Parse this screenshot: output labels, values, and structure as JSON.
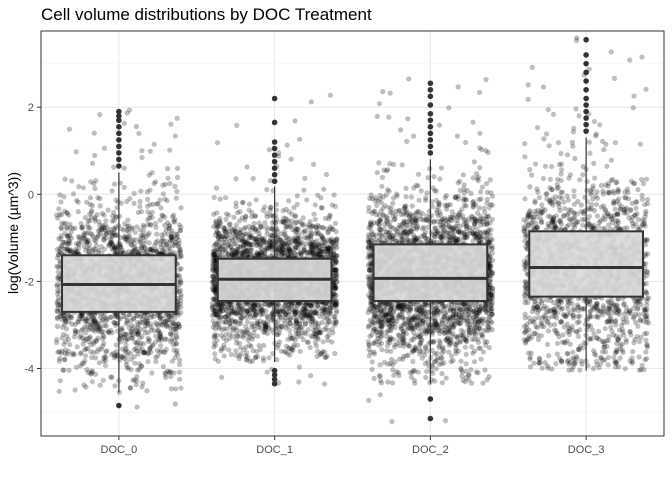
{
  "chart_data": {
    "type": "boxplot",
    "title": "Cell volume distributions by DOC Treatment",
    "xlabel": "",
    "ylabel": "log(Volume (µm^3))",
    "categories": [
      "DOC_0",
      "DOC_1",
      "DOC_2",
      "DOC_3"
    ],
    "yticks": [
      -4,
      -2,
      0,
      2
    ],
    "ylim": [
      -5.55,
      3.75
    ],
    "grid": true,
    "boxes": [
      {
        "category": "DOC_0",
        "q1": -2.7,
        "median": -2.07,
        "q3": -1.4,
        "whisker_low": -4.55,
        "whisker_high": 0.5,
        "outliers": [
          -4.85,
          0.65,
          0.8,
          0.95,
          1.1,
          1.25,
          1.4,
          1.55,
          1.7,
          1.8,
          1.9
        ]
      },
      {
        "category": "DOC_1",
        "q1": -2.45,
        "median": -1.95,
        "q3": -1.48,
        "whisker_low": -3.85,
        "whisker_high": 0.18,
        "outliers": [
          -4.05,
          -4.15,
          -4.25,
          -4.35,
          0.3,
          0.45,
          0.6,
          0.75,
          0.9,
          1.05,
          1.2,
          1.65,
          2.2
        ]
      },
      {
        "category": "DOC_2",
        "q1": -2.45,
        "median": -1.93,
        "q3": -1.15,
        "whisker_low": -4.35,
        "whisker_high": 0.8,
        "outliers": [
          -4.7,
          -5.15,
          0.95,
          1.1,
          1.25,
          1.4,
          1.55,
          1.7,
          1.85,
          2.05,
          2.25,
          2.4,
          2.55
        ]
      },
      {
        "category": "DOC_3",
        "q1": -2.35,
        "median": -1.68,
        "q3": -0.85,
        "whisker_low": -4.05,
        "whisker_high": 1.3,
        "outliers": [
          1.45,
          1.6,
          1.75,
          1.9,
          2.05,
          2.2,
          2.4,
          2.6,
          2.8,
          3.0,
          3.2,
          3.55
        ]
      }
    ],
    "jitter": {
      "points_per_group": [
        1900,
        2700,
        2600,
        1500
      ],
      "color": "#000000",
      "opacity": 0.25
    },
    "colors": {
      "box_fill": "#d9d9d9",
      "box_stroke": "#333333",
      "panel_border": "#333333",
      "grid_major": "#ebebeb",
      "grid_minor": "#f5f5f5"
    }
  }
}
